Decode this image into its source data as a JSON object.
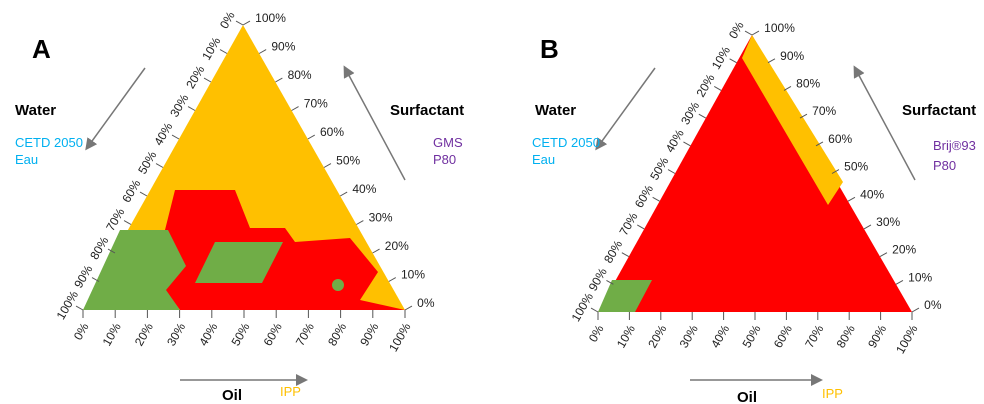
{
  "panels": [
    {
      "label": "A",
      "left": {
        "title": "Water",
        "items": [
          "CETD 2050",
          "Eau"
        ]
      },
      "right": {
        "title": "Surfactant",
        "items": [
          "GMS",
          "P80"
        ]
      },
      "bottom": {
        "title": "Oil",
        "items": [
          "IPP"
        ]
      },
      "left_ticks": [
        "0%",
        "10%",
        "20%",
        "30%",
        "40%",
        "50%",
        "60%",
        "70%",
        "80%",
        "90%",
        "100%"
      ],
      "right_ticks": [
        "0%",
        "10%",
        "20%",
        "30%",
        "40%",
        "50%",
        "60%",
        "70%",
        "80%",
        "90%",
        "100%"
      ],
      "bottom_ticks": [
        "0%",
        "10%",
        "20%",
        "30%",
        "40%",
        "50%",
        "60%",
        "70%",
        "80%",
        "90%",
        "100%"
      ]
    },
    {
      "label": "B",
      "left": {
        "title": "Water",
        "items": [
          "CETD 2050",
          "Eau"
        ]
      },
      "right": {
        "title": "Surfactant",
        "items": [
          "Brij®93",
          "P80"
        ]
      },
      "bottom": {
        "title": "Oil",
        "items": [
          "IPP"
        ]
      },
      "left_ticks": [
        "0%",
        "10%",
        "20%",
        "30%",
        "40%",
        "50%",
        "60%",
        "70%",
        "80%",
        "90%",
        "100%"
      ],
      "right_ticks": [
        "0%",
        "10%",
        "20%",
        "30%",
        "40%",
        "50%",
        "60%",
        "70%",
        "80%",
        "90%",
        "100%"
      ],
      "bottom_ticks": [
        "0%",
        "10%",
        "20%",
        "30%",
        "40%",
        "50%",
        "60%",
        "70%",
        "80%",
        "90%",
        "100%"
      ]
    }
  ]
}
